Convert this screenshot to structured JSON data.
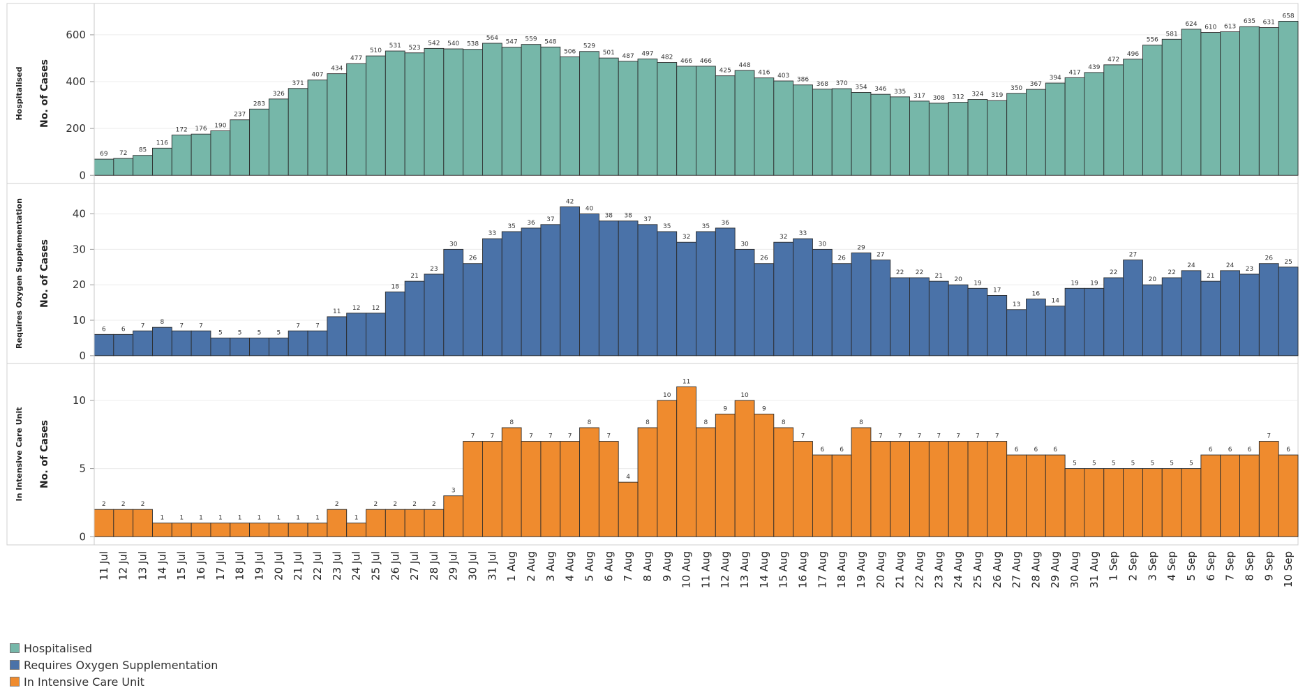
{
  "chart_data": {
    "type": "bar",
    "categories": [
      "11 Jul",
      "12 Jul",
      "13 Jul",
      "14 Jul",
      "15 Jul",
      "16 Jul",
      "17 Jul",
      "18 Jul",
      "19 Jul",
      "20 Jul",
      "21 Jul",
      "22 Jul",
      "23 Jul",
      "24 Jul",
      "25 Jul",
      "26 Jul",
      "27 Jul",
      "28 Jul",
      "29 Jul",
      "30 Jul",
      "31 Jul",
      "1 Aug",
      "2 Aug",
      "3 Aug",
      "4 Aug",
      "5 Aug",
      "6 Aug",
      "7 Aug",
      "8 Aug",
      "9 Aug",
      "10 Aug",
      "11 Aug",
      "12 Aug",
      "13 Aug",
      "14 Aug",
      "15 Aug",
      "16 Aug",
      "17 Aug",
      "18 Aug",
      "19 Aug",
      "20 Aug",
      "21 Aug",
      "22 Aug",
      "23 Aug",
      "24 Aug",
      "25 Aug",
      "26 Aug",
      "27 Aug",
      "28 Aug",
      "29 Aug",
      "30 Aug",
      "31 Aug",
      "1 Sep",
      "2 Sep",
      "3 Sep",
      "4 Sep",
      "5 Sep",
      "6 Sep",
      "7 Sep",
      "8 Sep",
      "9 Sep",
      "10 Sep"
    ],
    "series": [
      {
        "name": "Hospitalised",
        "color": "#76b7a9",
        "panel_title": "Hospitalised",
        "ylabel": "No. of Cases",
        "yticks": [
          0,
          200,
          400,
          600
        ],
        "ylim": [
          -35,
          710
        ],
        "values": [
          69,
          72,
          85,
          116,
          172,
          176,
          190,
          237,
          283,
          326,
          371,
          407,
          434,
          477,
          510,
          531,
          523,
          542,
          540,
          538,
          564,
          547,
          559,
          548,
          506,
          529,
          501,
          487,
          497,
          482,
          466,
          466,
          425,
          448,
          416,
          403,
          386,
          368,
          370,
          354,
          346,
          335,
          317,
          308,
          312,
          324,
          319,
          350,
          367,
          394,
          417,
          439,
          472,
          496,
          556,
          581,
          624,
          610,
          613,
          635,
          631,
          658
        ]
      },
      {
        "name": "Requires Oxygen Supplementation",
        "color": "#4a72a8",
        "panel_title": "Requires Oxygen Supplementation",
        "ylabel": "No. of Cases",
        "yticks": [
          0,
          10,
          20,
          30,
          40
        ],
        "ylim": [
          -2.2,
          47
        ],
        "values": [
          6,
          6,
          7,
          8,
          7,
          7,
          5,
          5,
          5,
          5,
          7,
          7,
          11,
          12,
          12,
          18,
          21,
          23,
          30,
          26,
          33,
          35,
          36,
          37,
          42,
          40,
          38,
          38,
          37,
          35,
          32,
          35,
          36,
          30,
          26,
          32,
          33,
          30,
          26,
          29,
          27,
          22,
          22,
          21,
          20,
          19,
          17,
          13,
          16,
          14,
          19,
          19,
          22,
          27,
          20,
          22,
          24,
          21,
          24,
          23,
          26,
          25
        ]
      },
      {
        "name": "In Intensive Care Unit",
        "color": "#ef8b2e",
        "panel_title": "In Intensive Care Unit",
        "ylabel": "No. of Cases",
        "yticks": [
          0,
          5,
          10
        ],
        "ylim": [
          -0.6,
          12.3
        ],
        "values": [
          2,
          2,
          2,
          1,
          1,
          1,
          1,
          1,
          1,
          1,
          1,
          1,
          2,
          1,
          2,
          2,
          2,
          2,
          3,
          7,
          7,
          8,
          7,
          7,
          7,
          8,
          7,
          4,
          8,
          10,
          11,
          8,
          9,
          10,
          9,
          8,
          7,
          6,
          6,
          8,
          7,
          7,
          7,
          7,
          7,
          7,
          7,
          6,
          6,
          6,
          5,
          5,
          5,
          5,
          5,
          5,
          5,
          6,
          6,
          6,
          7,
          6
        ]
      }
    ],
    "legend": [
      "Hospitalised",
      "Requires Oxygen Supplementation",
      "In Intensive Care Unit"
    ],
    "legend_position": "bottom-left",
    "grid": true
  }
}
